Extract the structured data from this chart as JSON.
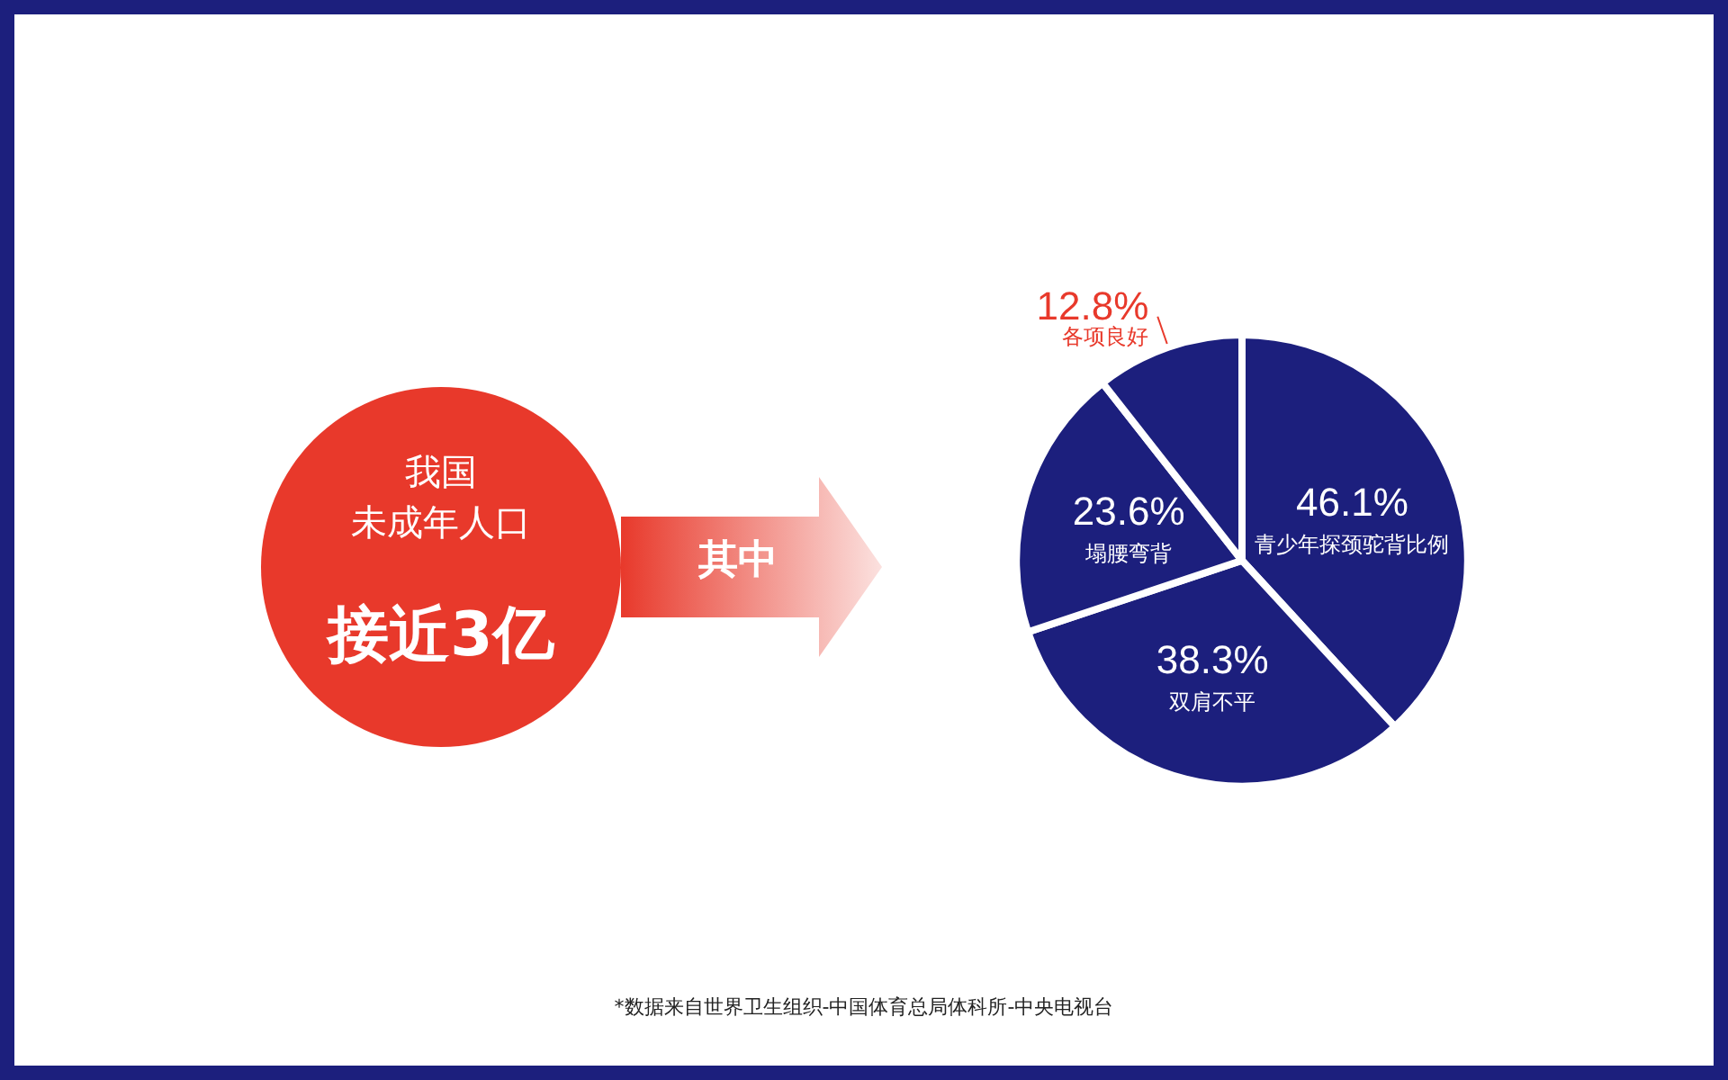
{
  "chart_data": {
    "type": "pie",
    "categories": [
      "青少年探颈驼背比例",
      "双肩不平",
      "塌腰弯背",
      "各项良好"
    ],
    "values": [
      46.1,
      38.3,
      23.6,
      12.8
    ],
    "value_labels": [
      "46.1%",
      "38.3%",
      "23.6%",
      "12.8%"
    ],
    "colors": [
      "#1c1f7d",
      "#1c1f7d",
      "#1c1f7d",
      "#1c1f7d"
    ],
    "annotations": [
      "我国",
      "未成年人口",
      "接近3亿",
      "其中",
      "*数据来自世界卫生组织-中国体育总局体科所-中央电视台"
    ]
  }
}
